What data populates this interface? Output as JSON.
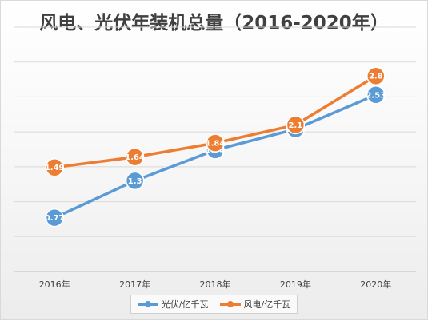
{
  "chart_data": {
    "type": "line",
    "title": "风电、光伏年装机总量（2016-2020年）",
    "categories": [
      "2016年",
      "2017年",
      "2018年",
      "2019年",
      "2020年"
    ],
    "series": [
      {
        "name": "光伏/亿千瓦",
        "color": "#5b9bd5",
        "values": [
          0.77,
          1.3,
          1.74,
          2.04,
          2.53
        ]
      },
      {
        "name": "风电/亿千瓦",
        "color": "#ed7d31",
        "values": [
          1.49,
          1.64,
          1.84,
          2.1,
          2.8
        ]
      }
    ],
    "ylim": [
      0,
      3.5
    ],
    "ytick_step": 0.5,
    "y_tick_labels_shown": false,
    "grid": true,
    "legend_position": "bottom",
    "data_labels": true
  }
}
